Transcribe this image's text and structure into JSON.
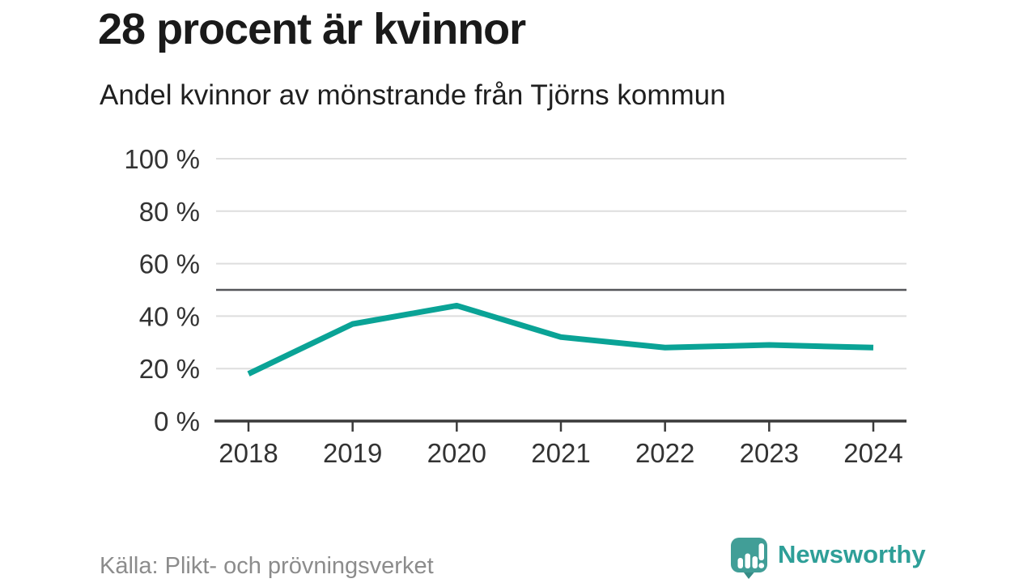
{
  "header": {
    "title": "28 procent är kvinnor",
    "subtitle": "Andel kvinnor av mönstrande från Tjörns kommun"
  },
  "footer": {
    "source": "Källa: Plikt- och prövningsverket",
    "brand": "Newsworthy"
  },
  "colors": {
    "line": "#0aa396",
    "reference_line": "#55565a",
    "gridline": "#dedede",
    "axis": "#3a3a3a",
    "tick_label": "#333333",
    "title_text": "#1a1a1a",
    "source_text": "#8c8c8c",
    "brand_teal": "#2e9f98",
    "logo_bubble": "#419e97",
    "logo_tail": "#368c86"
  },
  "chart_data": {
    "type": "line",
    "title": "28 procent är kvinnor",
    "subtitle": "Andel kvinnor av mönstrande från Tjörns kommun",
    "x": [
      "2018",
      "2019",
      "2020",
      "2021",
      "2022",
      "2023",
      "2024"
    ],
    "series": [
      {
        "name": "Andel kvinnor av mönstrande",
        "values": [
          18,
          37,
          44,
          32,
          28,
          29,
          28
        ]
      }
    ],
    "xlabel": "",
    "ylabel": "",
    "ylim": [
      0,
      100
    ],
    "yticks": [
      0,
      20,
      40,
      60,
      80,
      100
    ],
    "ytick_suffix": " %",
    "reference_line_y": 50,
    "grid": true,
    "legend": "none"
  }
}
